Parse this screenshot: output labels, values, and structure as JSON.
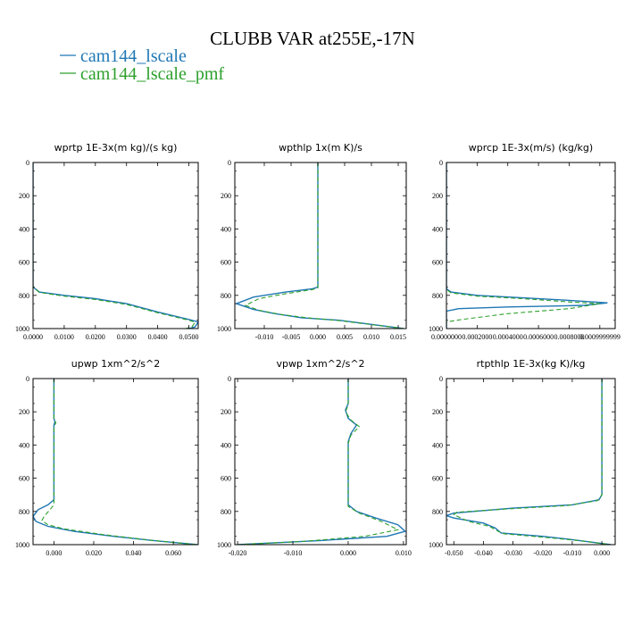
{
  "figure": {
    "title": "CLUBB VAR at255E,-17N",
    "legend": [
      {
        "name": "cam144_lscale",
        "color": "#1f77b4",
        "dash": "solid"
      },
      {
        "name": "cam144_lscale_pmf",
        "color": "#2ca02c",
        "dash": "dashed"
      }
    ]
  },
  "chart_data": [
    {
      "type": "line",
      "title": "wprtp  1E-3x(m kg)/(s kg)",
      "xlim": [
        0.0,
        0.053
      ],
      "ylim": [
        1000,
        0
      ],
      "xticks": [
        0.0,
        0.01,
        0.02,
        0.03,
        0.04,
        0.05
      ],
      "xtick_labels": [
        "0.0000",
        "0.0100",
        "0.0200",
        "0.0300",
        "0.0400",
        "0.0500"
      ],
      "yticks": [
        0,
        200,
        400,
        600,
        800,
        1000
      ],
      "ytick_labels": [
        "0",
        "200",
        "400",
        "600",
        "800",
        "1000"
      ],
      "series": [
        {
          "name": "cam144_lscale",
          "points": [
            [
              0.0,
              0
            ],
            [
              0.0,
              700
            ],
            [
              0.0,
              750
            ],
            [
              0.002,
              780
            ],
            [
              0.01,
              800
            ],
            [
              0.02,
              820
            ],
            [
              0.03,
              850
            ],
            [
              0.04,
              900
            ],
            [
              0.05,
              945
            ],
            [
              0.053,
              960
            ],
            [
              0.052,
              990
            ],
            [
              0.05,
              1000
            ]
          ]
        },
        {
          "name": "cam144_lscale_pmf",
          "points": [
            [
              0.0,
              0
            ],
            [
              0.0,
              700
            ],
            [
              0.0,
              750
            ],
            [
              0.002,
              782
            ],
            [
              0.01,
              805
            ],
            [
              0.02,
              825
            ],
            [
              0.03,
              855
            ],
            [
              0.04,
              905
            ],
            [
              0.05,
              950
            ],
            [
              0.052,
              962
            ],
            [
              0.051,
              990
            ],
            [
              0.049,
              1000
            ]
          ]
        }
      ]
    },
    {
      "type": "line",
      "title": "wpthlp  1x(m K)/s",
      "xlim": [
        -0.0155,
        0.0165
      ],
      "ylim": [
        1000,
        0
      ],
      "xticks": [
        -0.01,
        -0.005,
        0.0,
        0.005,
        0.01,
        0.015
      ],
      "xtick_labels": [
        "-0.010",
        "-0.005",
        "0.000",
        "0.005",
        "0.010",
        "0.015"
      ],
      "yticks": [
        0,
        200,
        400,
        600,
        800,
        1000
      ],
      "ytick_labels": [
        "0",
        "200",
        "400",
        "600",
        "800",
        "1000"
      ],
      "series": [
        {
          "name": "cam144_lscale",
          "points": [
            [
              0.0,
              0
            ],
            [
              0.0,
              700
            ],
            [
              0.0,
              750
            ],
            [
              -0.001,
              760
            ],
            [
              -0.006,
              780
            ],
            [
              -0.012,
              810
            ],
            [
              -0.0152,
              850
            ],
            [
              -0.012,
              885
            ],
            [
              -0.008,
              910
            ],
            [
              -0.003,
              935
            ],
            [
              0.004,
              950
            ],
            [
              0.016,
              1000
            ]
          ]
        },
        {
          "name": "cam144_lscale_pmf",
          "points": [
            [
              0.0,
              0
            ],
            [
              0.0,
              700
            ],
            [
              0.0,
              755
            ],
            [
              -0.001,
              765
            ],
            [
              -0.006,
              790
            ],
            [
              -0.011,
              820
            ],
            [
              -0.0135,
              860
            ],
            [
              -0.011,
              890
            ],
            [
              -0.007,
              915
            ],
            [
              -0.002,
              935
            ],
            [
              0.004,
              952
            ],
            [
              0.016,
              1000
            ]
          ]
        }
      ]
    },
    {
      "type": "line",
      "title": "wprcp  1E-3x(m/s) (kg/kg)",
      "xlim": [
        0.0,
        0.0011
      ],
      "ylim": [
        1000,
        0
      ],
      "xticks": [
        0.0,
        0.0002,
        0.0004,
        0.0006,
        0.0008,
        0.001
      ],
      "xtick_labels": [
        "0.0000000",
        "0.0002000",
        "0.0004000",
        "0.0006000",
        "0.0008000",
        "0.0009999999"
      ],
      "yticks": [
        0,
        200,
        400,
        600,
        800,
        1000
      ],
      "ytick_labels": [
        "0",
        "200",
        "400",
        "600",
        "800",
        "1000"
      ],
      "series": [
        {
          "name": "cam144_lscale",
          "points": [
            [
              0.0,
              0
            ],
            [
              0.0,
              700
            ],
            [
              0.0,
              760
            ],
            [
              3e-05,
              780
            ],
            [
              0.0002,
              800
            ],
            [
              0.0005,
              815
            ],
            [
              0.0008,
              830
            ],
            [
              0.00105,
              845
            ],
            [
              0.0009,
              860
            ],
            [
              0.0004,
              870
            ],
            [
              8e-05,
              880
            ],
            [
              0.0,
              895
            ],
            [
              0.0,
              1000
            ]
          ]
        },
        {
          "name": "cam144_lscale_pmf",
          "points": [
            [
              0.0,
              0
            ],
            [
              0.0,
              700
            ],
            [
              0.0,
              765
            ],
            [
              3e-05,
              785
            ],
            [
              0.0002,
              805
            ],
            [
              0.0005,
              820
            ],
            [
              0.0008,
              840
            ],
            [
              0.001,
              850
            ],
            [
              0.0008,
              880
            ],
            [
              0.0004,
              910
            ],
            [
              0.0001,
              945
            ],
            [
              0.0,
              960
            ],
            [
              0.0,
              1000
            ]
          ]
        }
      ]
    },
    {
      "type": "line",
      "title": "upwp  1xm^2/s^2",
      "xlim": [
        -0.0105,
        0.0725
      ],
      "ylim": [
        1000,
        0
      ],
      "xticks": [
        0.0,
        0.02,
        0.04,
        0.06
      ],
      "xtick_labels": [
        "0.000",
        "0.020",
        "0.040",
        "0.060"
      ],
      "yticks": [
        0,
        200,
        400,
        600,
        800,
        1000
      ],
      "ytick_labels": [
        "0",
        "200",
        "400",
        "600",
        "800",
        "1000"
      ],
      "series": [
        {
          "name": "cam144_lscale",
          "points": [
            [
              0.0,
              0
            ],
            [
              0.0,
              240
            ],
            [
              0.0005,
              260
            ],
            [
              0.0,
              280
            ],
            [
              0.0,
              730
            ],
            [
              -0.003,
              760
            ],
            [
              -0.008,
              790
            ],
            [
              -0.0105,
              830
            ],
            [
              -0.009,
              860
            ],
            [
              -0.003,
              890
            ],
            [
              0.01,
              920
            ],
            [
              0.03,
              950
            ],
            [
              0.05,
              975
            ],
            [
              0.072,
              1000
            ]
          ]
        },
        {
          "name": "cam144_lscale_pmf",
          "points": [
            [
              0.0,
              0
            ],
            [
              0.0,
              250
            ],
            [
              0.001,
              265
            ],
            [
              0.0,
              290
            ],
            [
              0.0,
              760
            ],
            [
              -0.002,
              790
            ],
            [
              -0.005,
              830
            ],
            [
              -0.006,
              855
            ],
            [
              -0.003,
              880
            ],
            [
              0.005,
              905
            ],
            [
              0.025,
              940
            ],
            [
              0.05,
              975
            ],
            [
              0.072,
              1000
            ]
          ]
        }
      ]
    },
    {
      "type": "line",
      "title": "vpwp  1xm^2/s^2",
      "xlim": [
        -0.0205,
        0.0105
      ],
      "ylim": [
        1000,
        0
      ],
      "xticks": [
        -0.02,
        -0.01,
        0.0,
        0.01
      ],
      "xtick_labels": [
        "-0.020",
        "-0.010",
        "0.000",
        "0.010"
      ],
      "yticks": [
        0,
        200,
        400,
        600,
        800,
        1000
      ],
      "ytick_labels": [
        "0",
        "200",
        "400",
        "600",
        "800",
        "1000"
      ],
      "series": [
        {
          "name": "cam144_lscale",
          "points": [
            [
              0.0,
              0
            ],
            [
              0.0,
              150
            ],
            [
              -0.0005,
              190
            ],
            [
              0.0,
              240
            ],
            [
              0.0015,
              280
            ],
            [
              0.0005,
              330
            ],
            [
              0.0,
              380
            ],
            [
              0.0,
              760
            ],
            [
              0.0015,
              800
            ],
            [
              0.005,
              840
            ],
            [
              0.009,
              880
            ],
            [
              0.0103,
              920
            ],
            [
              0.007,
              950
            ],
            [
              -0.005,
              975
            ],
            [
              -0.02,
              1000
            ]
          ]
        },
        {
          "name": "cam144_lscale_pmf",
          "points": [
            [
              0.0,
              0
            ],
            [
              0.0,
              160
            ],
            [
              -0.0005,
              200
            ],
            [
              0.0005,
              250
            ],
            [
              0.002,
              290
            ],
            [
              0.0005,
              340
            ],
            [
              0.0,
              390
            ],
            [
              0.0,
              770
            ],
            [
              0.002,
              810
            ],
            [
              0.006,
              860
            ],
            [
              0.009,
              910
            ],
            [
              0.003,
              950
            ],
            [
              -0.008,
              980
            ],
            [
              -0.02,
              1000
            ]
          ]
        }
      ]
    },
    {
      "type": "line",
      "title": "rtpthlp  1E-3x(kg K)/kg",
      "xlim": [
        -0.0525,
        0.0045
      ],
      "ylim": [
        1000,
        0
      ],
      "xticks": [
        -0.05,
        -0.04,
        -0.03,
        -0.02,
        -0.01,
        0.0
      ],
      "xtick_labels": [
        "-0.050",
        "-0.040",
        "-0.030",
        "-0.020",
        "-0.010",
        "0.000"
      ],
      "yticks": [
        0,
        200,
        400,
        600,
        800,
        1000
      ],
      "ytick_labels": [
        "0",
        "200",
        "400",
        "600",
        "800",
        "1000"
      ],
      "series": [
        {
          "name": "cam144_lscale",
          "points": [
            [
              0.0,
              0
            ],
            [
              0.0,
              700
            ],
            [
              -0.001,
              730
            ],
            [
              -0.01,
              760
            ],
            [
              -0.03,
              780
            ],
            [
              -0.05,
              810
            ],
            [
              -0.0525,
              825
            ],
            [
              -0.05,
              840
            ],
            [
              -0.04,
              870
            ],
            [
              -0.036,
              900
            ],
            [
              -0.034,
              930
            ],
            [
              -0.02,
              950
            ],
            [
              -0.01,
              970
            ],
            [
              0.003,
              1000
            ]
          ]
        },
        {
          "name": "cam144_lscale_pmf",
          "points": [
            [
              0.0,
              0
            ],
            [
              0.0,
              700
            ],
            [
              -0.0015,
              735
            ],
            [
              -0.012,
              765
            ],
            [
              -0.032,
              785
            ],
            [
              -0.049,
              805
            ],
            [
              -0.05,
              820
            ],
            [
              -0.045,
              860
            ],
            [
              -0.038,
              890
            ],
            [
              -0.035,
              920
            ],
            [
              -0.033,
              935
            ],
            [
              -0.02,
              955
            ],
            [
              -0.008,
              975
            ],
            [
              0.003,
              1000
            ]
          ]
        }
      ]
    }
  ]
}
